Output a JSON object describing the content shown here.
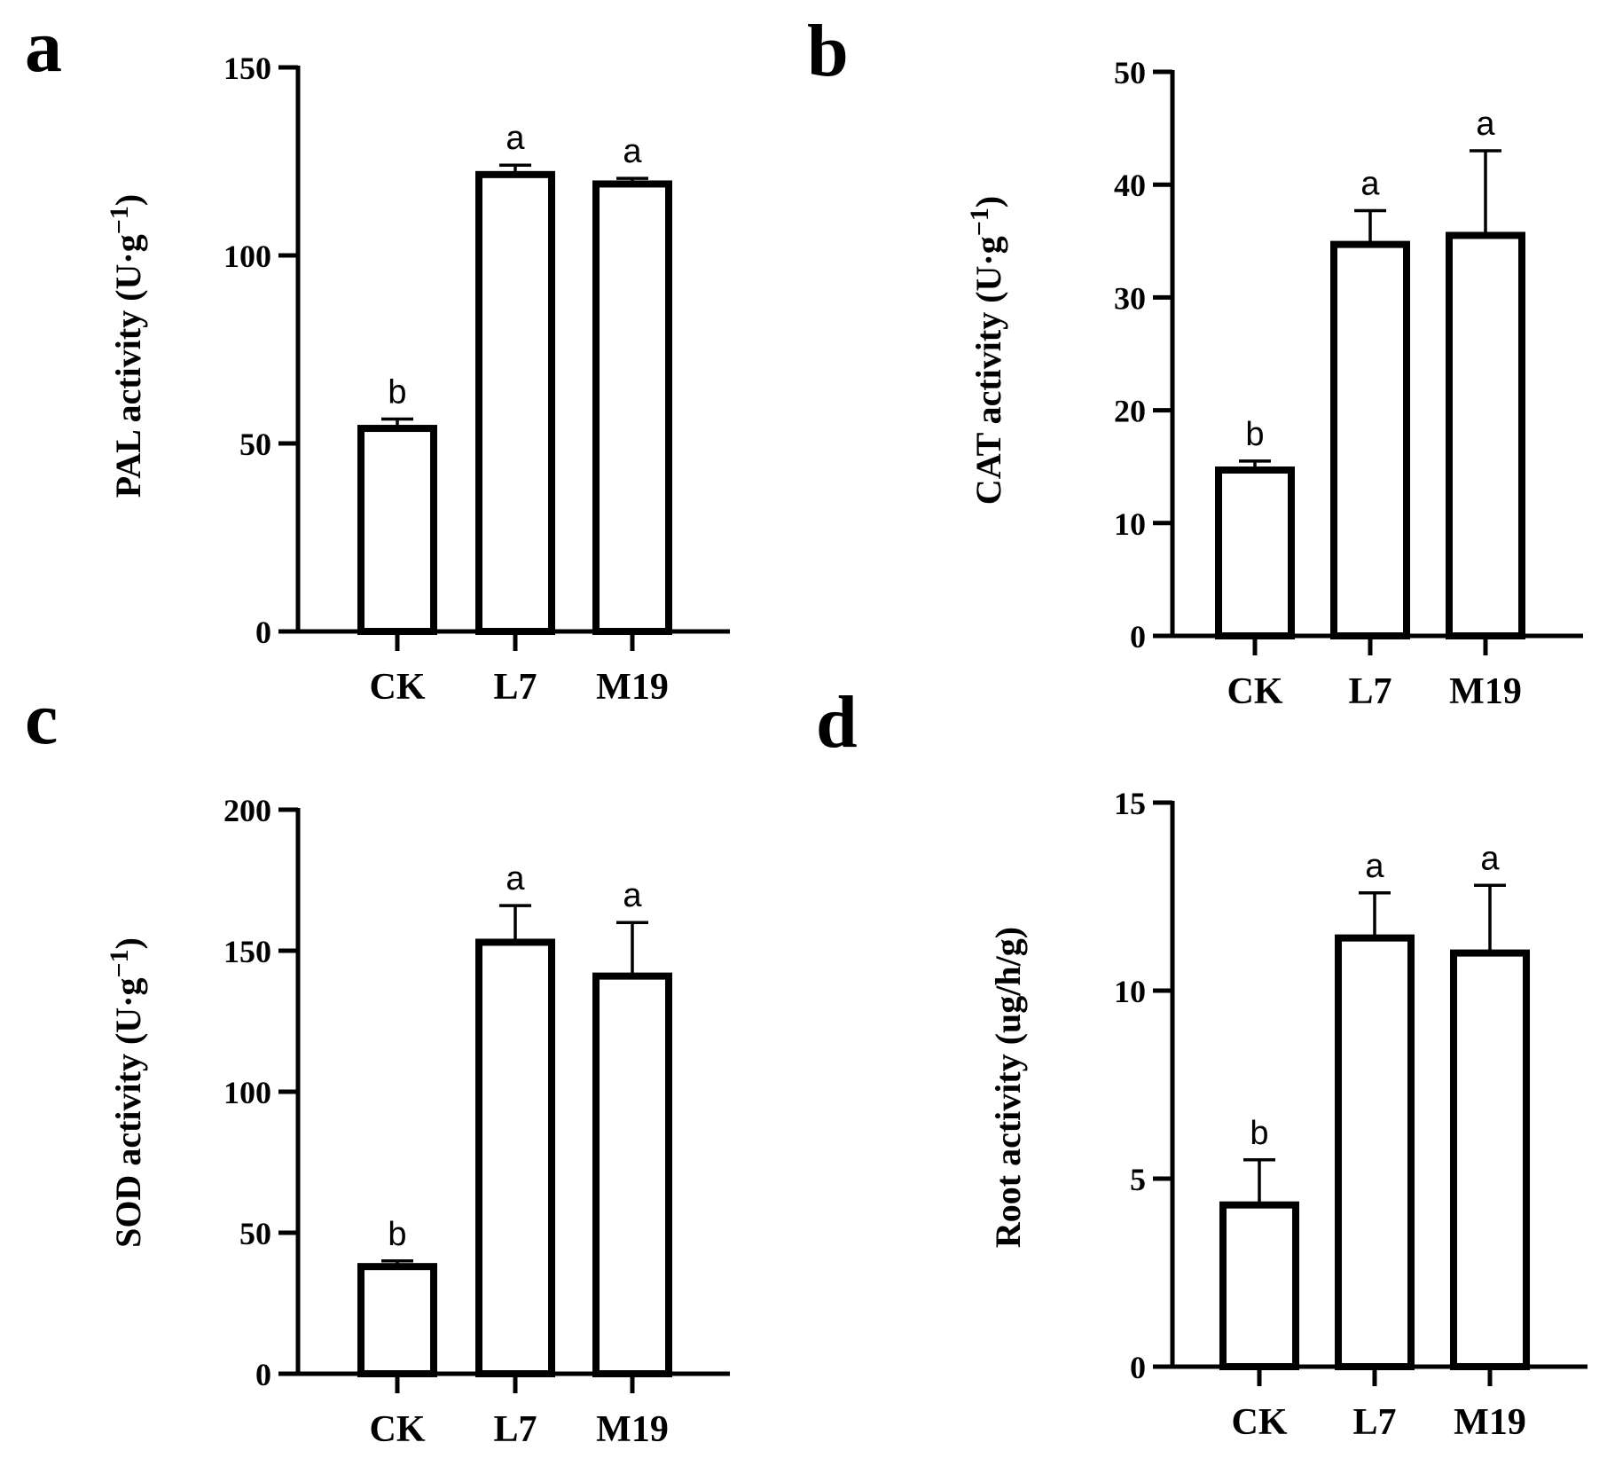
{
  "chart_data": [
    {
      "panel": "a",
      "type": "bar",
      "categories": [
        "CK",
        "L7",
        "M19"
      ],
      "values": [
        54,
        121.5,
        119
      ],
      "errors": [
        2.5,
        2.5,
        1.5
      ],
      "significance": [
        "b",
        "a",
        "a"
      ],
      "ylabel": "PAL activity (U·g",
      "ylabel_sup": "−1",
      "ylabel_close": ")",
      "ylim": [
        0,
        150
      ],
      "yticks": [
        0,
        50,
        100,
        150
      ]
    },
    {
      "panel": "b",
      "type": "bar",
      "categories": [
        "CK",
        "L7",
        "M19"
      ],
      "values": [
        14.7,
        34.7,
        35.5
      ],
      "errors": [
        0.8,
        3.0,
        7.5
      ],
      "significance": [
        "b",
        "a",
        "a"
      ],
      "ylabel": "CAT activity (U·g",
      "ylabel_sup": "−1",
      "ylabel_close": ")",
      "ylim": [
        0,
        50
      ],
      "yticks": [
        0,
        10,
        20,
        30,
        40,
        50
      ]
    },
    {
      "panel": "c",
      "type": "bar",
      "categories": [
        "CK",
        "L7",
        "M19"
      ],
      "values": [
        38,
        153,
        141
      ],
      "errors": [
        2,
        13,
        19
      ],
      "significance": [
        "b",
        "a",
        "a"
      ],
      "ylabel": "SOD activity (U·g",
      "ylabel_sup": "−1",
      "ylabel_close": ")",
      "ylim": [
        0,
        200
      ],
      "yticks": [
        0,
        50,
        100,
        150,
        200
      ]
    },
    {
      "panel": "d",
      "type": "bar",
      "categories": [
        "CK",
        "L7",
        "M19"
      ],
      "values": [
        4.3,
        11.4,
        11.0
      ],
      "errors": [
        1.2,
        1.2,
        1.8
      ],
      "significance": [
        "b",
        "a",
        "a"
      ],
      "ylabel": "Root activity (ug/h/g)",
      "ylabel_sup": "",
      "ylabel_close": "",
      "ylim": [
        0,
        15
      ],
      "yticks": [
        0,
        5,
        10,
        15
      ]
    }
  ]
}
